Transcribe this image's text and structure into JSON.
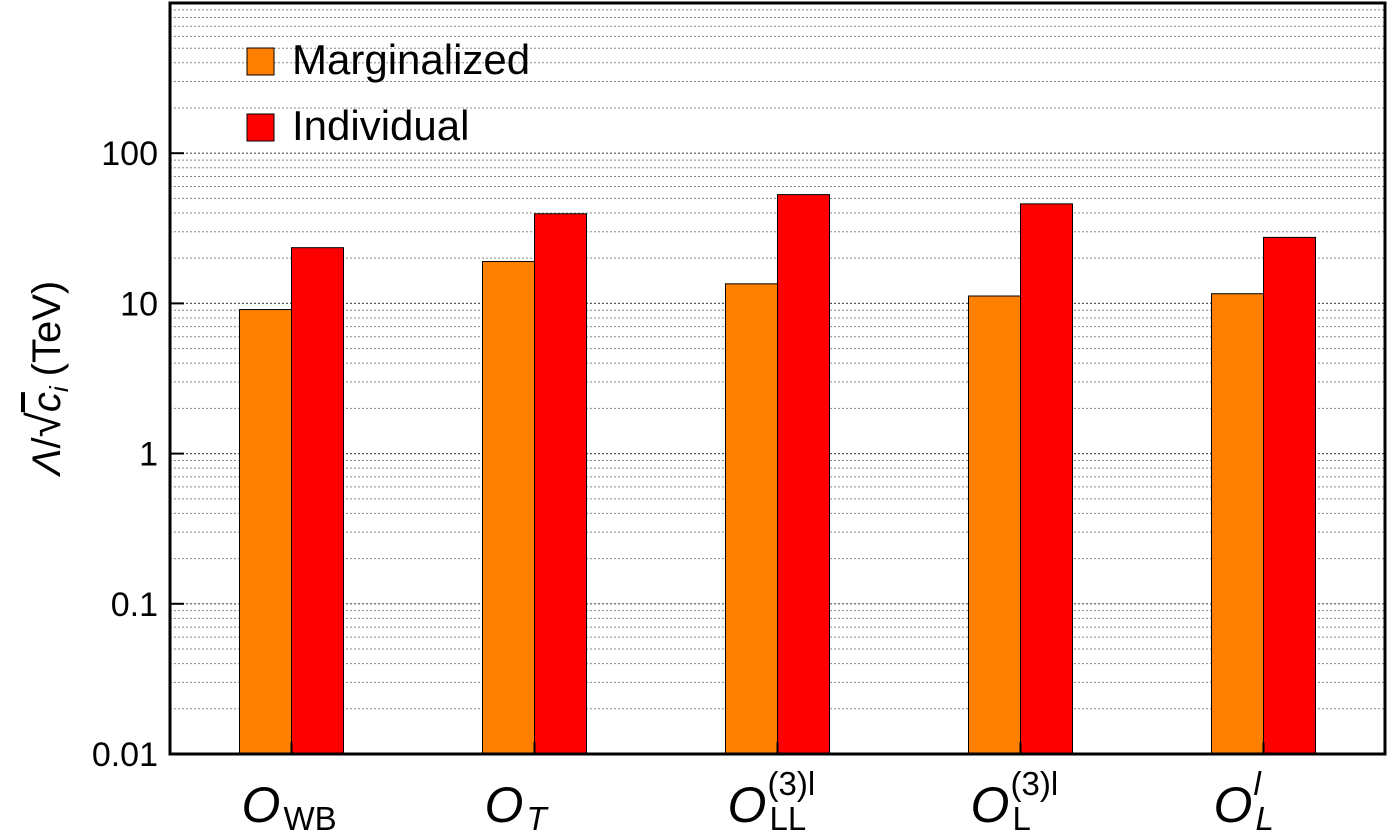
{
  "chart_data": {
    "type": "bar",
    "ylabel": "(TeV)",
    "ylabel_math": {
      "lambda": "Λ",
      "slash": "/",
      "c": "c",
      "sub": "i"
    },
    "yscale": "log",
    "ylim": [
      0.01,
      1000
    ],
    "yticks": [
      {
        "value": 0.01,
        "label": "0.01"
      },
      {
        "value": 0.1,
        "label": "0.1"
      },
      {
        "value": 1,
        "label": "1"
      },
      {
        "value": 10,
        "label": "10"
      },
      {
        "value": 100,
        "label": "100"
      }
    ],
    "grid": "horizontal-dotted",
    "legend_position": "top-left",
    "categories": [
      {
        "main": "O",
        "sub": "WB",
        "sup": "",
        "sub_italic": false,
        "sup_italic": false
      },
      {
        "main": "O",
        "sub": "T",
        "sup": "",
        "sub_italic": true,
        "sup_italic": false
      },
      {
        "main": "O",
        "sub": "LL",
        "sup": "(3)l",
        "sub_italic": false,
        "sup_italic": false
      },
      {
        "main": "O",
        "sub": "L",
        "sup": "(3)l",
        "sub_italic": false,
        "sup_italic": false
      },
      {
        "main": "O",
        "sub": "L",
        "sup": "l",
        "sub_italic": true,
        "sup_italic": true
      }
    ],
    "series": [
      {
        "name": "Marginalized",
        "color": "#ff8000",
        "values": [
          9.1,
          19.0,
          13.5,
          11.2,
          11.6
        ]
      },
      {
        "name": "Individual",
        "color": "#ff0000",
        "values": [
          23.5,
          39.5,
          53.0,
          46.0,
          27.5
        ]
      }
    ]
  }
}
